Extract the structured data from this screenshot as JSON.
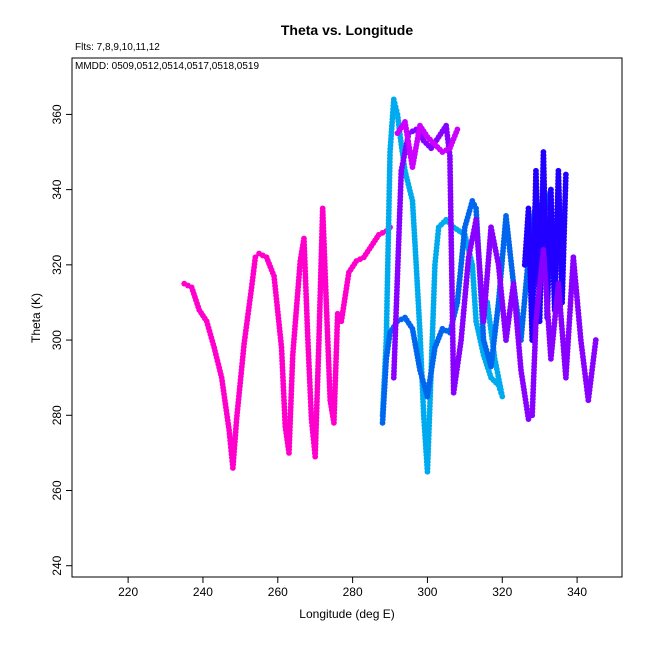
{
  "chart_data": {
    "type": "scatter",
    "title": "Theta vs. Longitude",
    "annotations": {
      "flights": "Flts: 7,8,9,10,11,12",
      "dates": "MMDD: 0509,0512,0514,0517,0518,0519"
    },
    "xlabel": "Longitude (deg E)",
    "ylabel": "Theta (K)",
    "xlim": [
      205,
      352
    ],
    "ylim": [
      237,
      375
    ],
    "xticks": [
      220,
      240,
      260,
      280,
      300,
      320,
      340
    ],
    "yticks": [
      240,
      260,
      280,
      300,
      320,
      340,
      360
    ],
    "grid": false,
    "legend": "none",
    "series": [
      {
        "color": "#ff00cc",
        "x": [
          235,
          237,
          239,
          241,
          243,
          245,
          247,
          248,
          249,
          251,
          253,
          254,
          255,
          257,
          259,
          261,
          262,
          263,
          264,
          266,
          267,
          268,
          269,
          270,
          271,
          272,
          273,
          274,
          275,
          276,
          277,
          279,
          281,
          283,
          285,
          287,
          289,
          290
        ],
        "y": [
          315,
          314,
          308,
          305,
          298,
          290,
          276,
          266,
          279,
          299,
          314,
          322,
          323,
          322,
          317,
          298,
          277,
          270,
          296,
          321,
          327,
          301,
          279,
          269,
          300,
          335,
          309,
          284,
          278,
          307,
          305,
          318,
          321,
          322,
          325,
          328,
          329,
          330
        ]
      },
      {
        "color": "#00aaee",
        "x": [
          288,
          289,
          290,
          291,
          292,
          293,
          294,
          296,
          297,
          298,
          299,
          300,
          301,
          302,
          303,
          305,
          307,
          310,
          312,
          313,
          315,
          317,
          319,
          320,
          318,
          316
        ],
        "y": [
          280,
          300,
          350,
          364,
          360,
          352,
          345,
          337,
          320,
          302,
          280,
          265,
          292,
          320,
          330,
          332,
          330,
          328,
          320,
          305,
          296,
          290,
          288,
          285,
          295,
          310
        ]
      },
      {
        "color": "#0066ee",
        "x": [
          288,
          289,
          290,
          292,
          294,
          296,
          298,
          300,
          302,
          304,
          306,
          308,
          310,
          312,
          313,
          315,
          317,
          319,
          321,
          323,
          325,
          327,
          329,
          331,
          333
        ],
        "y": [
          278,
          295,
          302,
          305,
          306,
          303,
          292,
          285,
          298,
          303,
          302,
          310,
          330,
          337,
          335,
          300,
          293,
          310,
          333,
          315,
          300,
          322,
          337,
          333,
          340
        ]
      },
      {
        "color": "#2200ff",
        "x": [
          326,
          327,
          328,
          329,
          330,
          331,
          332,
          333,
          334,
          335,
          336,
          337
        ],
        "y": [
          320,
          335,
          300,
          345,
          305,
          350,
          306,
          340,
          308,
          345,
          310,
          344
        ]
      },
      {
        "color": "#8800ff",
        "x": [
          291,
          293,
          295,
          297,
          299,
          301,
          303,
          305,
          306,
          307,
          309,
          311,
          313,
          315,
          317,
          319,
          321,
          323,
          325,
          327,
          328,
          329,
          331,
          333,
          335,
          337,
          339,
          341,
          343,
          345
        ],
        "y": [
          290,
          345,
          355,
          356,
          353,
          351,
          354,
          357,
          349,
          286,
          300,
          322,
          332,
          305,
          330,
          320,
          300,
          315,
          292,
          279,
          280,
          305,
          324,
          295,
          315,
          290,
          322,
          300,
          284,
          300
        ]
      },
      {
        "color": "#cc00ff",
        "x": [
          292,
          294,
          296,
          298,
          300,
          302,
          304,
          306,
          308
        ],
        "y": [
          355,
          358,
          346,
          357,
          354,
          352,
          350,
          351,
          356
        ]
      }
    ]
  }
}
